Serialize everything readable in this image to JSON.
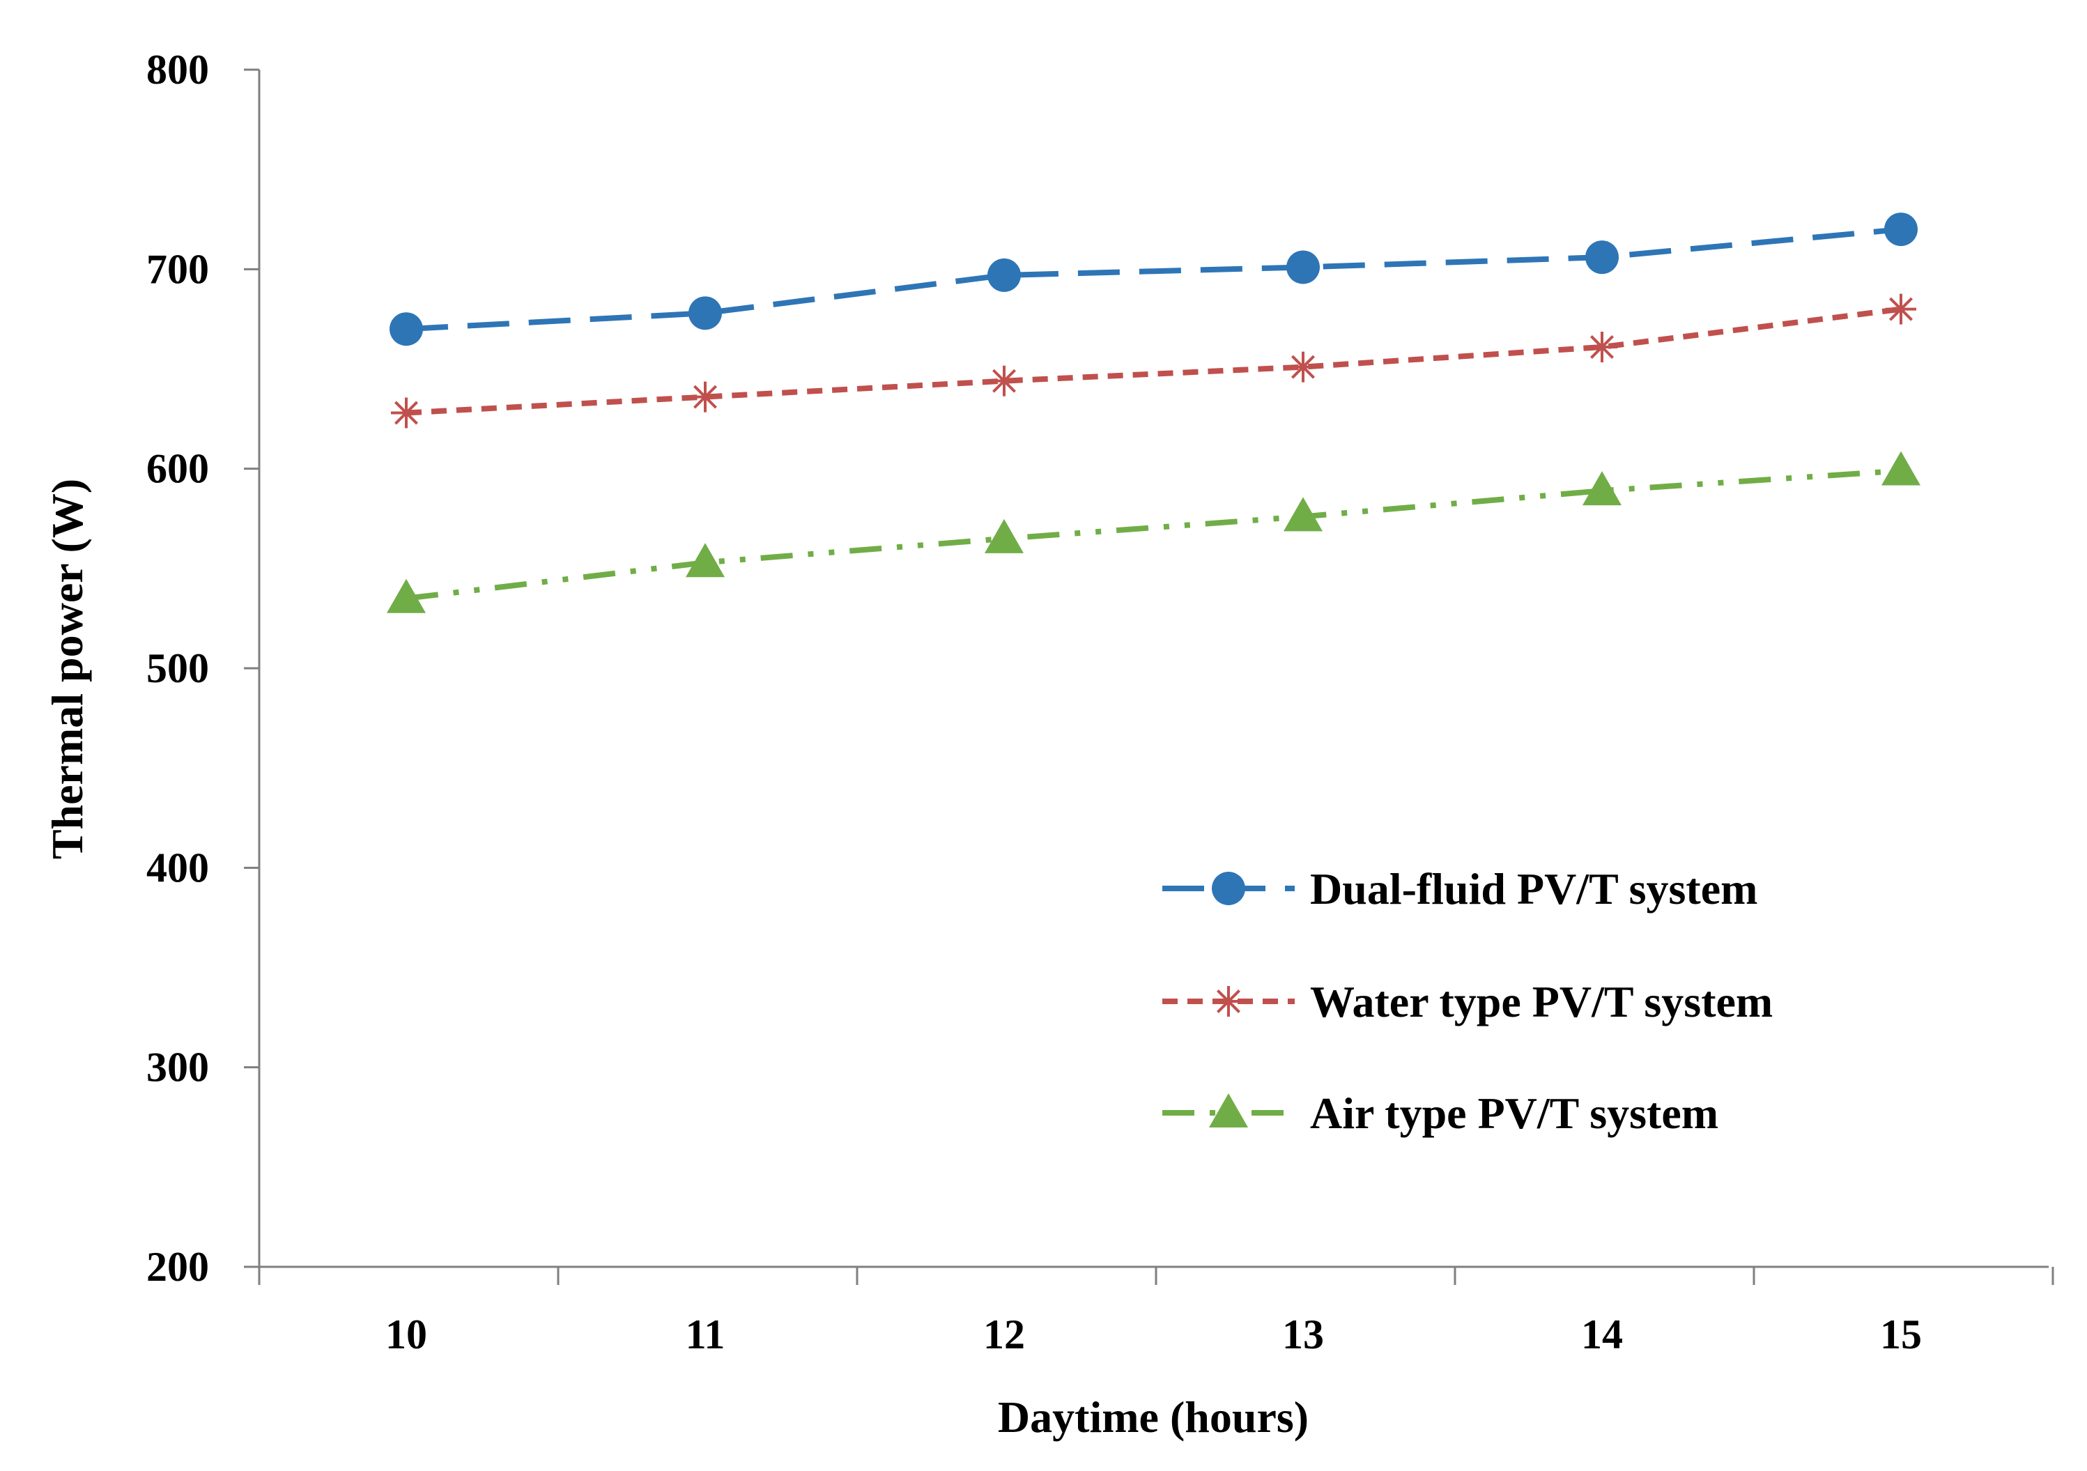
{
  "chart_data": {
    "type": "line",
    "title": "",
    "xlabel": "Daytime (hours)",
    "ylabel": "Thermal power (W)",
    "x": [
      10,
      11,
      12,
      13,
      14,
      15
    ],
    "x_tick_labels": [
      "10",
      "11",
      "12",
      "13",
      "14",
      "15"
    ],
    "ylim": [
      200,
      800
    ],
    "y_ticks": [
      200,
      300,
      400,
      500,
      600,
      700,
      800
    ],
    "y_tick_labels": [
      "200",
      "300",
      "400",
      "500",
      "600",
      "700",
      "800"
    ],
    "grid": false,
    "legend_position": "center-right",
    "series": [
      {
        "name": "Dual-fluid PV/T system",
        "values": [
          670,
          678,
          697,
          701,
          706,
          720
        ],
        "color": "#2E75B6",
        "marker": "circle",
        "line_style": "long-dash"
      },
      {
        "name": "Water type PV/T system",
        "values": [
          628,
          636,
          644,
          651,
          661,
          680
        ],
        "color": "#C0504D",
        "marker": "asterisk",
        "line_style": "short-dash"
      },
      {
        "name": "Air type PV/T system",
        "values": [
          535,
          553,
          565,
          576,
          589,
          599
        ],
        "color": "#70AD47",
        "marker": "triangle",
        "line_style": "dash-dot-dot"
      }
    ]
  }
}
